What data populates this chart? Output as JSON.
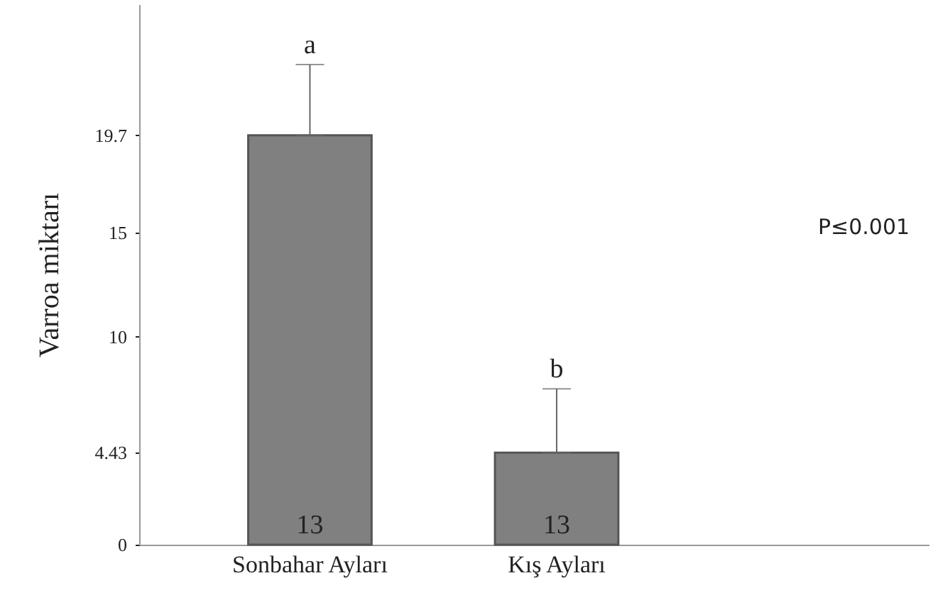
{
  "chart_data": {
    "type": "bar",
    "ylabel": "Varroa miktarı",
    "categories": [
      "Sonbahar Ayları",
      "Kış Ayları"
    ],
    "values": [
      19.7,
      4.43
    ],
    "color": "#808080",
    "errors": [
      [
        19.7,
        23.1
      ],
      [
        4.43,
        7.5
      ]
    ],
    "ylim": [
      0,
      26
    ],
    "yticks": [
      0,
      4.43,
      10,
      15,
      19.7
    ],
    "annotations": [
      {
        "text": "a",
        "x": "Sonbahar Ayları",
        "y": 23.1
      },
      {
        "text": "b",
        "x": "Kış Ayları",
        "y": 7.5
      },
      {
        "text": "13",
        "x": "Sonbahar Ayları",
        "y": 0
      },
      {
        "text": "13",
        "x": "Kış Ayları",
        "y": 0
      },
      "P≤0.001"
    ]
  }
}
